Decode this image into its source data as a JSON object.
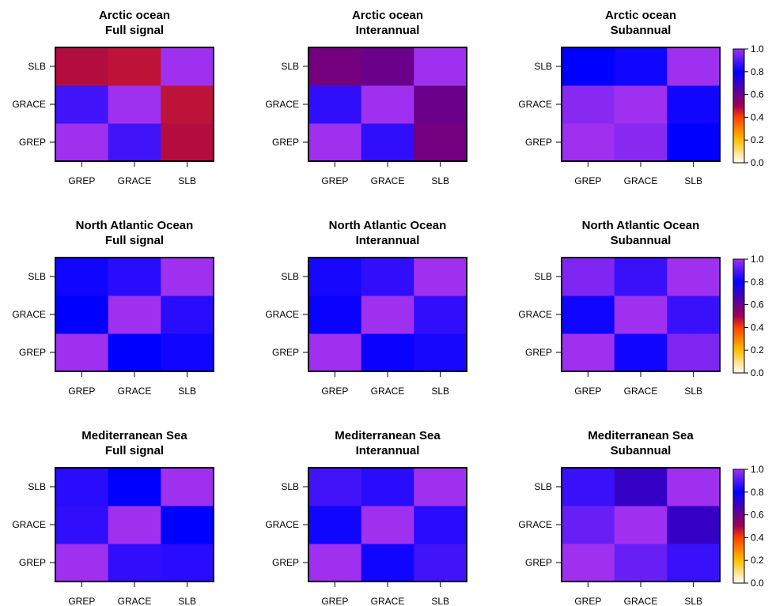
{
  "chart_data": [
    {
      "type": "heatmap",
      "title": "Arctic ocean",
      "subtitle": "Full signal",
      "x_categories": [
        "GREP",
        "GRACE",
        "SLB"
      ],
      "y_categories": [
        "GREP",
        "GRACE",
        "SLB"
      ],
      "values": [
        [
          1.0,
          0.88,
          0.48
        ],
        [
          0.88,
          1.0,
          0.47
        ],
        [
          0.48,
          0.47,
          1.0
        ]
      ],
      "zlim": [
        0,
        1
      ]
    },
    {
      "type": "heatmap",
      "title": "Arctic ocean",
      "subtitle": "Interannual",
      "x_categories": [
        "GREP",
        "GRACE",
        "SLB"
      ],
      "y_categories": [
        "GREP",
        "GRACE",
        "SLB"
      ],
      "values": [
        [
          1.0,
          0.86,
          0.58
        ],
        [
          0.86,
          1.0,
          0.6
        ],
        [
          0.58,
          0.6,
          1.0
        ]
      ],
      "zlim": [
        0,
        1
      ]
    },
    {
      "type": "heatmap",
      "title": "Arctic ocean",
      "subtitle": "Subannual",
      "x_categories": [
        "GREP",
        "GRACE",
        "SLB"
      ],
      "y_categories": [
        "GREP",
        "GRACE",
        "SLB"
      ],
      "values": [
        [
          1.0,
          0.97,
          0.8
        ],
        [
          0.97,
          1.0,
          0.82
        ],
        [
          0.8,
          0.82,
          1.0
        ]
      ],
      "zlim": [
        0,
        1
      ],
      "colorbar": true
    },
    {
      "type": "heatmap",
      "title": "North Atlantic Ocean",
      "subtitle": "Full signal",
      "x_categories": [
        "GREP",
        "GRACE",
        "SLB"
      ],
      "y_categories": [
        "GREP",
        "GRACE",
        "SLB"
      ],
      "values": [
        [
          1.0,
          0.8,
          0.82
        ],
        [
          0.8,
          1.0,
          0.85
        ],
        [
          0.82,
          0.85,
          1.0
        ]
      ],
      "zlim": [
        0,
        1
      ]
    },
    {
      "type": "heatmap",
      "title": "North Atlantic Ocean",
      "subtitle": "Interannual",
      "x_categories": [
        "GREP",
        "GRACE",
        "SLB"
      ],
      "y_categories": [
        "GREP",
        "GRACE",
        "SLB"
      ],
      "values": [
        [
          1.0,
          0.81,
          0.83
        ],
        [
          0.81,
          1.0,
          0.86
        ],
        [
          0.83,
          0.86,
          1.0
        ]
      ],
      "zlim": [
        0,
        1
      ]
    },
    {
      "type": "heatmap",
      "title": "North Atlantic Ocean",
      "subtitle": "Subannual",
      "x_categories": [
        "GREP",
        "GRACE",
        "SLB"
      ],
      "y_categories": [
        "GREP",
        "GRACE",
        "SLB"
      ],
      "values": [
        [
          1.0,
          0.82,
          0.96
        ],
        [
          0.82,
          1.0,
          0.87
        ],
        [
          0.96,
          0.87,
          1.0
        ]
      ],
      "zlim": [
        0,
        1
      ],
      "colorbar": true
    },
    {
      "type": "heatmap",
      "title": "Mediterranean Sea",
      "subtitle": "Full signal",
      "x_categories": [
        "GREP",
        "GRACE",
        "SLB"
      ],
      "y_categories": [
        "GREP",
        "GRACE",
        "SLB"
      ],
      "values": [
        [
          1.0,
          0.86,
          0.85
        ],
        [
          0.86,
          1.0,
          0.8
        ],
        [
          0.85,
          0.8,
          1.0
        ]
      ],
      "zlim": [
        0,
        1
      ]
    },
    {
      "type": "heatmap",
      "title": "Mediterranean Sea",
      "subtitle": "Interannual",
      "x_categories": [
        "GREP",
        "GRACE",
        "SLB"
      ],
      "y_categories": [
        "GREP",
        "GRACE",
        "SLB"
      ],
      "values": [
        [
          1.0,
          0.82,
          0.88
        ],
        [
          0.82,
          1.0,
          0.85
        ],
        [
          0.88,
          0.85,
          1.0
        ]
      ],
      "zlim": [
        0,
        1
      ]
    },
    {
      "type": "heatmap",
      "title": "Mediterranean Sea",
      "subtitle": "Subannual",
      "x_categories": [
        "GREP",
        "GRACE",
        "SLB"
      ],
      "y_categories": [
        "GREP",
        "GRACE",
        "SLB"
      ],
      "values": [
        [
          1.0,
          0.93,
          0.87
        ],
        [
          0.93,
          1.0,
          0.7
        ],
        [
          0.87,
          0.7,
          1.0
        ]
      ],
      "zlim": [
        0,
        1
      ],
      "colorbar": true
    }
  ],
  "colorbar": {
    "ticks": [
      "0.0",
      "0.2",
      "0.4",
      "0.6",
      "0.8",
      "1.0"
    ],
    "stops": [
      {
        "v": 0.0,
        "color": "#ffffff"
      },
      {
        "v": 0.2,
        "color": "#ffbf00"
      },
      {
        "v": 0.4,
        "color": "#ff4000"
      },
      {
        "v": 0.5,
        "color": "#a00050"
      },
      {
        "v": 0.8,
        "color": "#0000ff"
      },
      {
        "v": 1.0,
        "color": "#a030f0"
      }
    ]
  }
}
